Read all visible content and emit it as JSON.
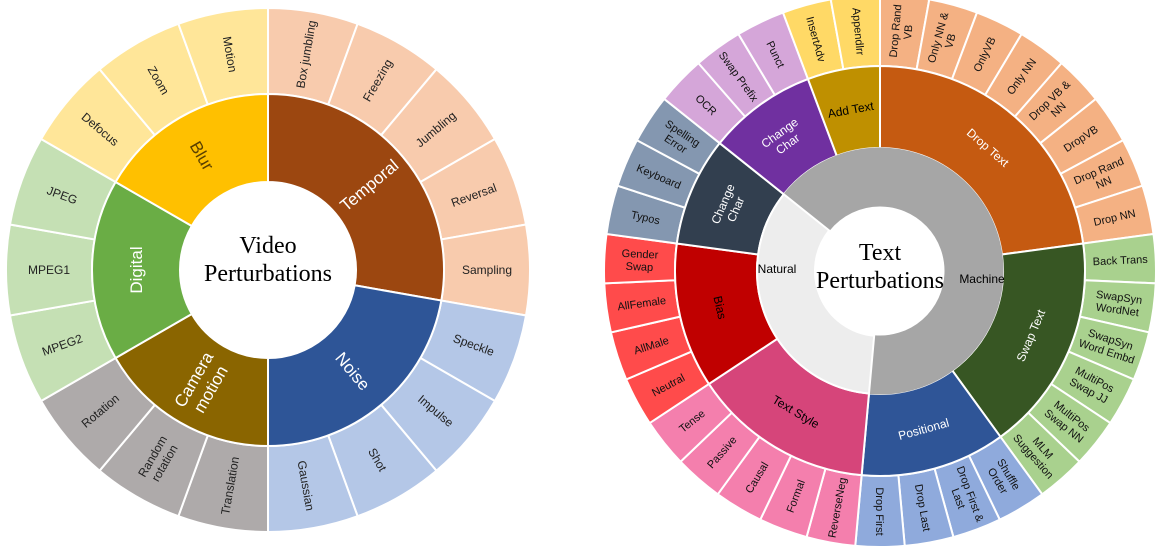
{
  "left_chart": {
    "title_lines": [
      "Video",
      "Perturbations"
    ],
    "inner": [
      {
        "label": "Temporal",
        "color": "#9C4710",
        "text_color": "#ffffff",
        "lines": [
          "Temporal"
        ],
        "rot": true
      },
      {
        "label": "Noise",
        "color": "#2E5597",
        "text_color": "#ffffff",
        "lines": [
          "Noise"
        ],
        "rot": true
      },
      {
        "label": "Camera motion",
        "color": "#8A6500",
        "text_color": "#ffffff",
        "lines": [
          "Camera",
          "motion"
        ],
        "rot": true
      },
      {
        "label": "Digital",
        "color": "#6AAD45",
        "text_color": "#ffffff",
        "lines": [
          "Digital"
        ],
        "rot": false
      },
      {
        "label": "Blur",
        "color": "#FFC000",
        "text_color": "#5a4000",
        "lines": [
          "Blur"
        ],
        "rot": true
      }
    ],
    "outer": [
      {
        "label": "Box jumbling",
        "parent": 0,
        "lines": [
          "Box jumbling"
        ]
      },
      {
        "label": "Freezing",
        "parent": 0,
        "lines": [
          "Freezing"
        ]
      },
      {
        "label": "Jumbling",
        "parent": 0,
        "lines": [
          "Jumbling"
        ]
      },
      {
        "label": "Reversal",
        "parent": 0,
        "lines": [
          "Reversal"
        ]
      },
      {
        "label": "Sampling",
        "parent": 0,
        "lines": [
          "Sampling"
        ]
      },
      {
        "label": "Speckle",
        "parent": 1,
        "lines": [
          "Speckle"
        ]
      },
      {
        "label": "Impulse",
        "parent": 1,
        "lines": [
          "Impulse"
        ]
      },
      {
        "label": "Shot",
        "parent": 1,
        "lines": [
          "Shot"
        ]
      },
      {
        "label": "Gaussian",
        "parent": 1,
        "lines": [
          "Gaussian"
        ]
      },
      {
        "label": "Translation",
        "parent": 2,
        "lines": [
          "Translation"
        ]
      },
      {
        "label": "Random rotation",
        "parent": 2,
        "lines": [
          "Random",
          "rotation"
        ]
      },
      {
        "label": "Rotation",
        "parent": 2,
        "lines": [
          "Rotation"
        ]
      },
      {
        "label": "MPEG2",
        "parent": 3,
        "lines": [
          "MPEG2"
        ]
      },
      {
        "label": "MPEG1",
        "parent": 3,
        "lines": [
          "MPEG1"
        ]
      },
      {
        "label": "JPEG",
        "parent": 3,
        "lines": [
          "JPEG"
        ]
      },
      {
        "label": "Defocus",
        "parent": 4,
        "lines": [
          "Defocus"
        ]
      },
      {
        "label": "Zoom",
        "parent": 4,
        "lines": [
          "Zoom"
        ]
      },
      {
        "label": "Motion",
        "parent": 4,
        "lines": [
          "Motion"
        ]
      }
    ],
    "outer_colors": [
      "#F8CBAD",
      "#B4C7E7",
      "#AEAAAA",
      "#C5E0B4",
      "#FFE699"
    ]
  },
  "right_chart": {
    "title_lines": [
      "Text",
      "Perturbations"
    ],
    "inner": [
      {
        "label": "Machine",
        "color": "#A6A6A6",
        "text_color": "#000000",
        "lines": [
          "Machine"
        ]
      },
      {
        "label": "Natural",
        "color": "#EDEDED",
        "text_color": "#000000",
        "lines": [
          "Natural"
        ]
      }
    ],
    "middle": [
      {
        "label": "Drop Text",
        "parent": 0,
        "color": "#C55A11",
        "text_color": "#ffffff",
        "lines": [
          "Drop Text"
        ]
      },
      {
        "label": "Swap Text",
        "parent": 0,
        "color": "#375623",
        "text_color": "#ffffff",
        "lines": [
          "Swap Text"
        ]
      },
      {
        "label": "Positional",
        "parent": 0,
        "color": "#2F5597",
        "text_color": "#ffffff",
        "lines": [
          "Positional"
        ]
      },
      {
        "label": "Text Style",
        "parent": 1,
        "color": "#D6457A",
        "text_color": "#000000",
        "lines": [
          "Text Style"
        ]
      },
      {
        "label": "Bias",
        "parent": 1,
        "color": "#C00000",
        "text_color": "#000000",
        "lines": [
          "Bias"
        ]
      },
      {
        "label": "Change Char",
        "parent": 1,
        "color": "#323F4F",
        "text_color": "#ffffff",
        "lines": [
          "Change",
          "Char"
        ]
      },
      {
        "label": "Change Char",
        "parent": 0,
        "color": "#7030A0",
        "text_color": "#ffffff",
        "lines": [
          "Change",
          "Char"
        ]
      },
      {
        "label": "Add Text",
        "parent": 0,
        "color": "#BF9000",
        "text_color": "#000000",
        "lines": [
          "Add Text"
        ]
      }
    ],
    "outer": [
      {
        "label": "Drop Rand VB",
        "parent": 0,
        "lines": [
          "Drop Rand",
          "VB"
        ]
      },
      {
        "label": "Only NN & VB",
        "parent": 0,
        "lines": [
          "Only NN &",
          "VB"
        ]
      },
      {
        "label": "OnlyVB",
        "parent": 0,
        "lines": [
          "OnlyVB"
        ]
      },
      {
        "label": "Only NN",
        "parent": 0,
        "lines": [
          "Only NN"
        ]
      },
      {
        "label": "Drop VB & NN",
        "parent": 0,
        "lines": [
          "Drop VB &",
          "NN"
        ]
      },
      {
        "label": "DropVB",
        "parent": 0,
        "lines": [
          "DropVB"
        ]
      },
      {
        "label": "Drop Rand NN",
        "parent": 0,
        "lines": [
          "Drop Rand",
          "NN"
        ]
      },
      {
        "label": "Drop NN",
        "parent": 0,
        "lines": [
          "Drop NN"
        ]
      },
      {
        "label": "Back Trans",
        "parent": 1,
        "lines": [
          "Back Trans"
        ]
      },
      {
        "label": "SwapSyn WordNet",
        "parent": 1,
        "lines": [
          "SwapSyn",
          "WordNet"
        ]
      },
      {
        "label": "SwapSyn Word Embd",
        "parent": 1,
        "lines": [
          "SwapSyn",
          "Word Embd"
        ]
      },
      {
        "label": "MultiPos Swap JJ",
        "parent": 1,
        "lines": [
          "MultiPos",
          "Swap JJ"
        ]
      },
      {
        "label": "MultiPos Swap NN",
        "parent": 1,
        "lines": [
          "MultiPos",
          "Swap NN"
        ]
      },
      {
        "label": "MLM Suggestion",
        "parent": 1,
        "lines": [
          "MLM",
          "Suggestion"
        ]
      },
      {
        "label": "Shuffle Order",
        "parent": 2,
        "lines": [
          "Shuffle",
          "Order"
        ]
      },
      {
        "label": "Drop First & Last",
        "parent": 2,
        "lines": [
          "Drop First &",
          "Last"
        ]
      },
      {
        "label": "Drop Last",
        "parent": 2,
        "lines": [
          "Drop Last"
        ]
      },
      {
        "label": "Drop First",
        "parent": 2,
        "lines": [
          "Drop First"
        ]
      },
      {
        "label": "ReverseNeg",
        "parent": 3,
        "lines": [
          "ReverseNeg"
        ]
      },
      {
        "label": "Formal",
        "parent": 3,
        "lines": [
          "Formal"
        ]
      },
      {
        "label": "Causal",
        "parent": 3,
        "lines": [
          "Causal"
        ]
      },
      {
        "label": "Passive",
        "parent": 3,
        "lines": [
          "Passive"
        ]
      },
      {
        "label": "Tense",
        "parent": 3,
        "lines": [
          "Tense"
        ]
      },
      {
        "label": "Neutral",
        "parent": 4,
        "lines": [
          "Neutral"
        ]
      },
      {
        "label": "AllMale",
        "parent": 4,
        "lines": [
          "AllMale"
        ]
      },
      {
        "label": "AllFemale",
        "parent": 4,
        "lines": [
          "AllFemale"
        ]
      },
      {
        "label": "Gender Swap",
        "parent": 4,
        "lines": [
          "Gender",
          "Swap"
        ]
      },
      {
        "label": "Typos",
        "parent": 5,
        "lines": [
          "Typos"
        ]
      },
      {
        "label": "Keyboard",
        "parent": 5,
        "lines": [
          "Keyboard"
        ]
      },
      {
        "label": "Spelling Error",
        "parent": 5,
        "lines": [
          "Spelling",
          "Error"
        ]
      },
      {
        "label": "OCR",
        "parent": 6,
        "lines": [
          "OCR"
        ]
      },
      {
        "label": "Swap Prefix",
        "parent": 6,
        "lines": [
          "Swap Prefix"
        ]
      },
      {
        "label": "Punct",
        "parent": 6,
        "lines": [
          "Punct"
        ]
      },
      {
        "label": "InsertAdv",
        "parent": 7,
        "lines": [
          "InsertAdv"
        ]
      },
      {
        "label": "Appendlrr",
        "parent": 7,
        "lines": [
          "Appendlrr"
        ]
      }
    ],
    "outer_colors": [
      "#F4B183",
      "#A9D18E",
      "#8FAADC",
      "#F47FAD",
      "#FF4B4B",
      "#8497B0",
      "#D5A6D9",
      "#FFD966"
    ]
  }
}
